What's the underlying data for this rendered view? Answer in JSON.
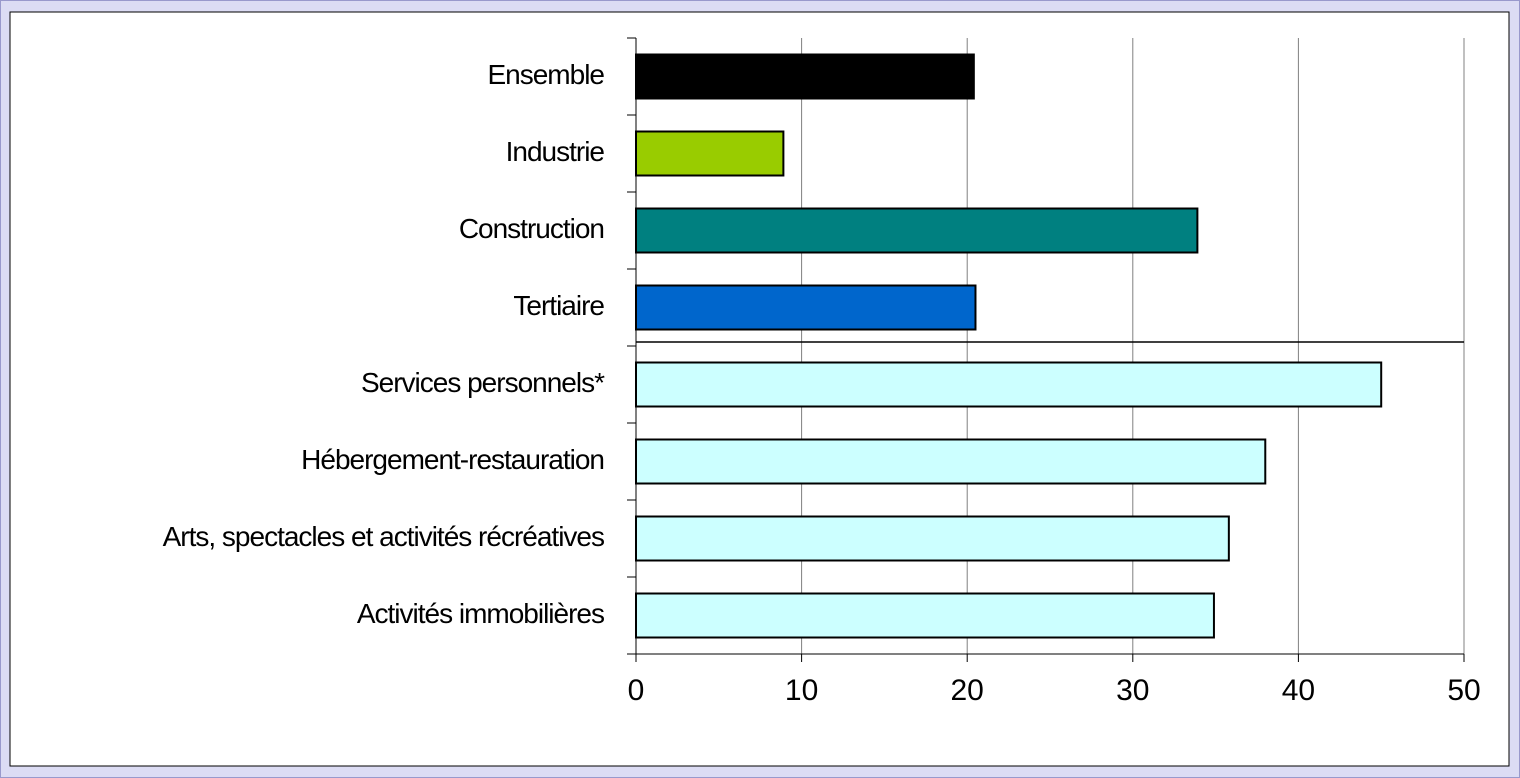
{
  "chart_data": {
    "type": "hbar",
    "categories": [
      "Ensemble",
      "Industrie",
      "Construction",
      "Tertiaire",
      "Services personnels*",
      "Hébergement-restauration",
      "Arts, spectacles et activités récréatives",
      "Activités immobilières"
    ],
    "values": [
      20.4,
      8.9,
      33.9,
      20.5,
      45.0,
      38.0,
      35.8,
      34.9
    ],
    "colors": [
      "#000000",
      "#99cc00",
      "#008080",
      "#0066cc",
      "#ccffff",
      "#ccffff",
      "#ccffff",
      "#ccffff"
    ],
    "xlim": [
      0,
      50
    ],
    "xticks": [
      0,
      10,
      20,
      30,
      40,
      50
    ],
    "grid": true
  }
}
